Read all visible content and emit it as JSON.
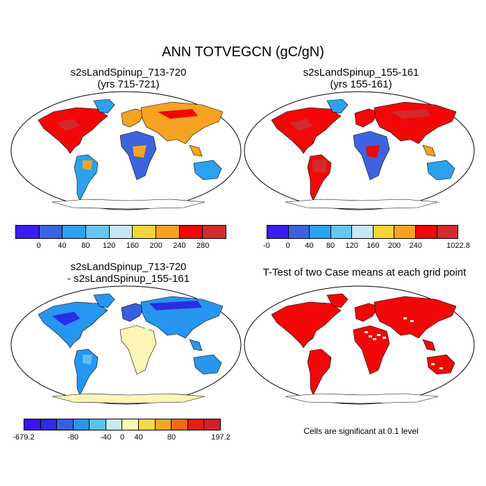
{
  "title": "ANN TOTVEGCN (gC/gN)",
  "panels": [
    {
      "title_line1": "s2sLandSpinup_713-720",
      "title_line2": "(yrs 715-721)",
      "colorbar": {
        "colors": [
          "#3b1cf2",
          "#3d63df",
          "#2ba1ef",
          "#66c6f0",
          "#c6e8f4",
          "#f5d43a",
          "#f7a321",
          "#f10707",
          "#d22b2b"
        ],
        "ticks": [
          "0",
          "40",
          "80",
          "120",
          "160",
          "200",
          "240",
          "280"
        ]
      }
    },
    {
      "title_line1": "s2sLandSpinup_155-161",
      "title_line2": "(yrs 155-161)",
      "colorbar": {
        "colors": [
          "#3b1cf2",
          "#3d63df",
          "#2ba1ef",
          "#66c6f0",
          "#c6e8f4",
          "#f5d43a",
          "#f7a321",
          "#f10707",
          "#d22b2b"
        ],
        "ticks": [
          "-0",
          "0",
          "40",
          "80",
          "120",
          "160",
          "200",
          "240",
          "1022.8"
        ]
      }
    },
    {
      "title_line1": "s2sLandSpinup_713-720",
      "title_line2": "- s2sLandSpinup_155-161",
      "colorbar": {
        "colors": [
          "#3a13f0",
          "#2b2ce3",
          "#3a5ee1",
          "#2696f0",
          "#5bc1f1",
          "#c7e9f5",
          "#fbf5b6",
          "#f8d64a",
          "#f7a52a",
          "#ee6a17",
          "#e31e12",
          "#d41e28"
        ],
        "ticks": [
          "-679.2",
          "-80",
          "-40",
          "0",
          "40",
          "80",
          "197.2"
        ]
      }
    },
    {
      "title_line1": "T-Test of two Case means at each grid point",
      "note": "Cells are significant at 0.1 level",
      "sig_color": "#f10707"
    }
  ]
}
